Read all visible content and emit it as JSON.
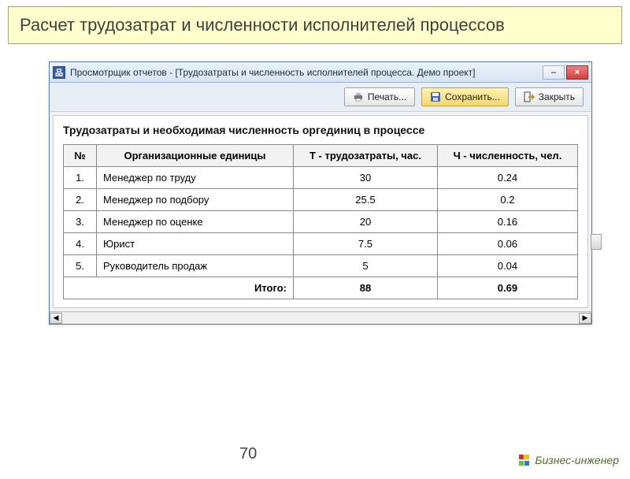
{
  "slide": {
    "title": "Расчет трудозатрат и численности исполнителей процессов"
  },
  "window": {
    "title": "Просмотрщик отчетов -  [Трудозатраты и численность исполнителей процесса. Демо проект]",
    "icon_glyph": "品",
    "minimize_label": "–",
    "close_label": "×",
    "colors": {
      "titlebar_icon_bg": "#3a5ea8",
      "close_bg": "#d04040"
    }
  },
  "toolbar": {
    "print_label": "Печать...",
    "save_label": "Сохранить...",
    "close_label": "Закрыть"
  },
  "report": {
    "title": "Трудозатраты и необходимая численность оргединиц в процессе",
    "columns": {
      "num": "№",
      "unit": "Организационные единицы",
      "labor": "Т - трудозатраты, час.",
      "count": "Ч - численность, чел."
    },
    "rows": [
      {
        "n": "1.",
        "unit": "Менеджер по труду",
        "labor": "30",
        "count": "0.24"
      },
      {
        "n": "2.",
        "unit": "Менеджер по подбору",
        "labor": "25.5",
        "count": "0.2"
      },
      {
        "n": "3.",
        "unit": "Менеджер по оценке",
        "labor": "20",
        "count": "0.16"
      },
      {
        "n": "4.",
        "unit": "Юрист",
        "labor": "7.5",
        "count": "0.06"
      },
      {
        "n": "5.",
        "unit": "Руководитель продаж",
        "labor": "5",
        "count": "0.04"
      }
    ],
    "total": {
      "label": "Итого:",
      "labor": "88",
      "count": "0.69"
    }
  },
  "footer": {
    "page_number": "70",
    "brand": "Бизнес-инженер",
    "brand_colors": [
      "#d92b2b",
      "#f2c200",
      "#6bbf3b",
      "#2b74d9"
    ]
  }
}
